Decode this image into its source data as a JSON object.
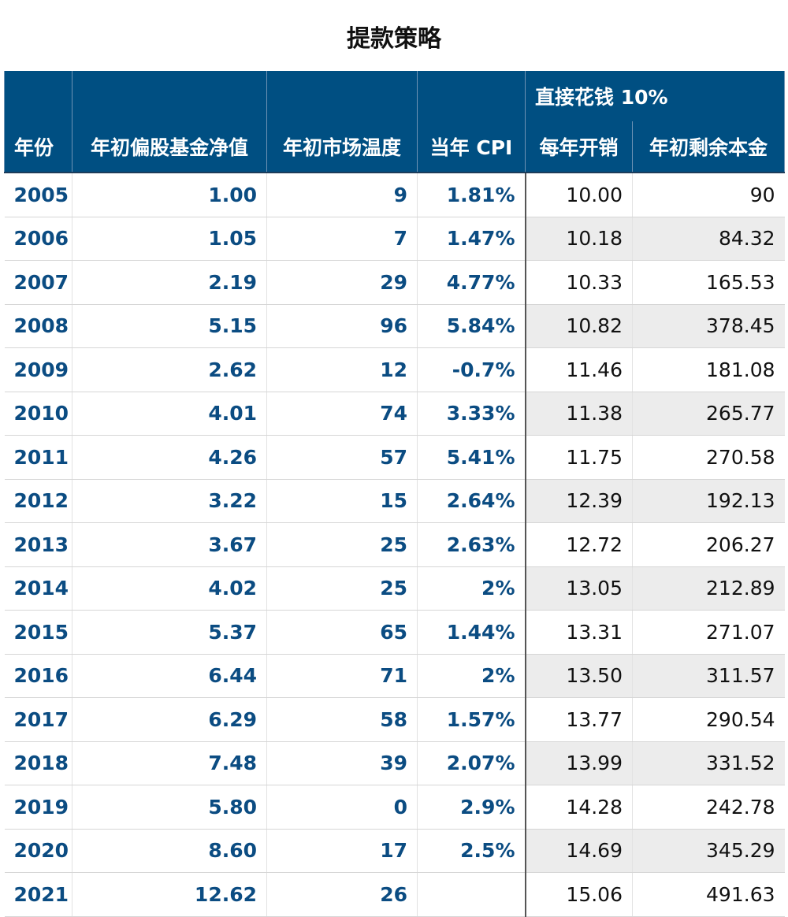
{
  "title": "提款策略",
  "group_header": "直接花钱 10%",
  "columns": [
    "年份",
    "年初偏股基金净值",
    "年初市场温度",
    "当年 CPI",
    "每年开销",
    "年初剩余本金"
  ],
  "rows": [
    {
      "year": "2005",
      "nav": "1.00",
      "temp": "9",
      "cpi": "1.81%",
      "spend": "10.00",
      "remain": "90"
    },
    {
      "year": "2006",
      "nav": "1.05",
      "temp": "7",
      "cpi": "1.47%",
      "spend": "10.18",
      "remain": "84.32"
    },
    {
      "year": "2007",
      "nav": "2.19",
      "temp": "29",
      "cpi": "4.77%",
      "spend": "10.33",
      "remain": "165.53"
    },
    {
      "year": "2008",
      "nav": "5.15",
      "temp": "96",
      "cpi": "5.84%",
      "spend": "10.82",
      "remain": "378.45"
    },
    {
      "year": "2009",
      "nav": "2.62",
      "temp": "12",
      "cpi": "-0.7%",
      "spend": "11.46",
      "remain": "181.08"
    },
    {
      "year": "2010",
      "nav": "4.01",
      "temp": "74",
      "cpi": "3.33%",
      "spend": "11.38",
      "remain": "265.77"
    },
    {
      "year": "2011",
      "nav": "4.26",
      "temp": "57",
      "cpi": "5.41%",
      "spend": "11.75",
      "remain": "270.58"
    },
    {
      "year": "2012",
      "nav": "3.22",
      "temp": "15",
      "cpi": "2.64%",
      "spend": "12.39",
      "remain": "192.13"
    },
    {
      "year": "2013",
      "nav": "3.67",
      "temp": "25",
      "cpi": "2.63%",
      "spend": "12.72",
      "remain": "206.27"
    },
    {
      "year": "2014",
      "nav": "4.02",
      "temp": "25",
      "cpi": "2%",
      "spend": "13.05",
      "remain": "212.89"
    },
    {
      "year": "2015",
      "nav": "5.37",
      "temp": "65",
      "cpi": "1.44%",
      "spend": "13.31",
      "remain": "271.07"
    },
    {
      "year": "2016",
      "nav": "6.44",
      "temp": "71",
      "cpi": "2%",
      "spend": "13.50",
      "remain": "311.57"
    },
    {
      "year": "2017",
      "nav": "6.29",
      "temp": "58",
      "cpi": "1.57%",
      "spend": "13.77",
      "remain": "290.54"
    },
    {
      "year": "2018",
      "nav": "7.48",
      "temp": "39",
      "cpi": "2.07%",
      "spend": "13.99",
      "remain": "331.52"
    },
    {
      "year": "2019",
      "nav": "5.80",
      "temp": "0",
      "cpi": "2.9%",
      "spend": "14.28",
      "remain": "242.78"
    },
    {
      "year": "2020",
      "nav": "8.60",
      "temp": "17",
      "cpi": "2.5%",
      "spend": "14.69",
      "remain": "345.29"
    },
    {
      "year": "2021",
      "nav": "12.62",
      "temp": "26",
      "cpi": "",
      "spend": "15.06",
      "remain": "491.63"
    }
  ]
}
